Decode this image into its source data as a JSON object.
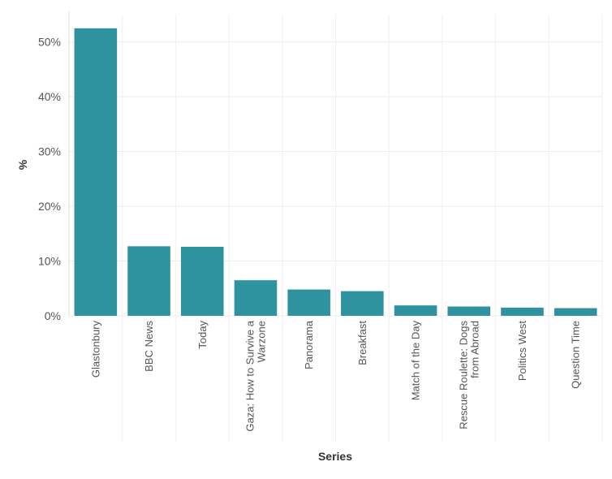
{
  "chart_data": {
    "type": "bar",
    "categories": [
      "Glastonbury",
      "BBC News",
      "Today",
      "Gaza: How to Survive a|Warzone",
      "Panorama",
      "Breakfast",
      "Match of the Day",
      "Rescue Roulette: Dogs|from Abroad",
      "Politics West",
      "Question Time"
    ],
    "values": [
      52.5,
      12.7,
      12.6,
      6.5,
      4.8,
      4.5,
      1.9,
      1.7,
      1.5,
      1.4
    ],
    "xlabel": "Series",
    "ylabel": "%",
    "ylim": [
      0,
      55
    ],
    "yticks": [
      0,
      10,
      20,
      30,
      40,
      50
    ],
    "ytick_labels": [
      "0%",
      "10%",
      "20%",
      "30%",
      "40%",
      "50%"
    ],
    "grid": true,
    "bar_color": "#2e939e"
  }
}
